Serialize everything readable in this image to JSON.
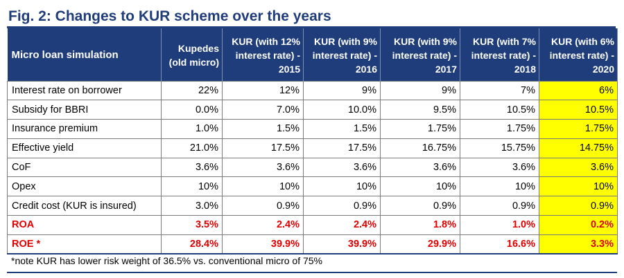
{
  "figure": {
    "title": "Fig. 2: Changes to KUR scheme over the years",
    "note": "*note KUR has lower risk weight of 36.5% vs. conventional micro of 75%"
  },
  "table": {
    "headers": [
      "Micro loan simulation",
      "Kupedes (old micro)",
      "KUR (with 12% interest rate) - 2015",
      "KUR (with 9% interest rate) - 2016",
      "KUR (with 9% interest rate) - 2017",
      "KUR (with 7% interest rate) - 2018",
      "KUR (with 6% interest rate) - 2020"
    ],
    "rows": [
      {
        "label": "Interest rate on borrower",
        "values": [
          "22%",
          "12%",
          "9%",
          "9%",
          "7%",
          "6%"
        ]
      },
      {
        "label": "Subsidy for BBRI",
        "values": [
          "0.0%",
          "7.0%",
          "10.0%",
          "9.5%",
          "10.5%",
          "10.5%"
        ]
      },
      {
        "label": "Insurance premium",
        "values": [
          "1.0%",
          "1.5%",
          "1.5%",
          "1.75%",
          "1.75%",
          "1.75%"
        ]
      },
      {
        "label": "Effective yield",
        "values": [
          "21.0%",
          "17.5%",
          "17.5%",
          "16.75%",
          "15.75%",
          "14.75%"
        ]
      },
      {
        "label": "CoF",
        "values": [
          "3.6%",
          "3.6%",
          "3.6%",
          "3.6%",
          "3.6%",
          "3.6%"
        ]
      },
      {
        "label": "Opex",
        "values": [
          "10%",
          "10%",
          "10%",
          "10%",
          "10%",
          "10%"
        ]
      },
      {
        "label": "Credit cost (KUR is insured)",
        "values": [
          "3.0%",
          "0.9%",
          "0.9%",
          "0.9%",
          "0.9%",
          "0.9%"
        ]
      },
      {
        "label": "ROA",
        "values": [
          "3.5%",
          "2.4%",
          "2.4%",
          "1.8%",
          "1.0%",
          "0.2%"
        ]
      },
      {
        "label": "ROE *",
        "values": [
          "28.4%",
          "39.9%",
          "39.9%",
          "29.9%",
          "16.6%",
          "3.3%"
        ]
      }
    ]
  },
  "colors": {
    "header_bg": "#1f3d7a",
    "highlight": "#ffff00",
    "emphasis_text": "#e00000"
  }
}
